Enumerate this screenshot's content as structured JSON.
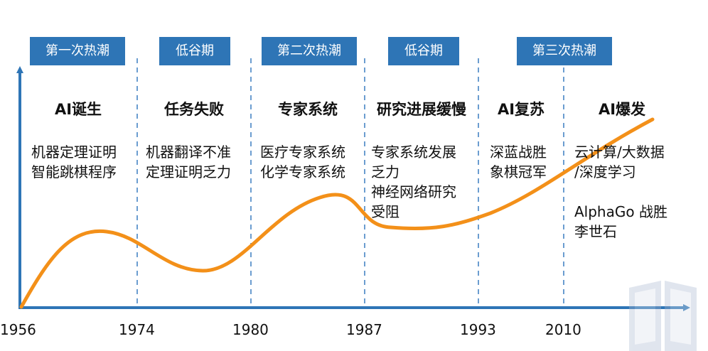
{
  "era_labels": [
    "第一次热潮",
    "低谷期",
    "第二次热潮",
    "低谷期",
    "第三次热潮"
  ],
  "periods": [
    {
      "title": "AI诞生",
      "lines": [
        "机器定理证明",
        "智能跳棋程序"
      ]
    },
    {
      "title": "任务失败",
      "lines": [
        "机器翻译不准",
        "定理证明乏力"
      ]
    },
    {
      "title": "专家系统",
      "lines": [
        "医疗专家系统",
        "化学专家系统"
      ]
    },
    {
      "title": "研究进展缓慢",
      "lines": [
        "专家系统发展",
        "乏力",
        "神经网络研究",
        "受阻"
      ]
    },
    {
      "title": "AI复苏",
      "lines": [
        "深蓝战胜",
        "象棋冠军"
      ]
    },
    {
      "title": "AI爆发",
      "lines": [
        "云计算/大数据",
        "/深度学习",
        "",
        "AlphaGo 战胜",
        "李世石"
      ]
    }
  ],
  "years": [
    "1956",
    "1974",
    "1980",
    "1987",
    "1993",
    "2010"
  ],
  "colors": {
    "label_bg": "#2e75b6",
    "axis": "#2e75b6",
    "curve": "#f39019",
    "divider": "#3a7dc0"
  }
}
